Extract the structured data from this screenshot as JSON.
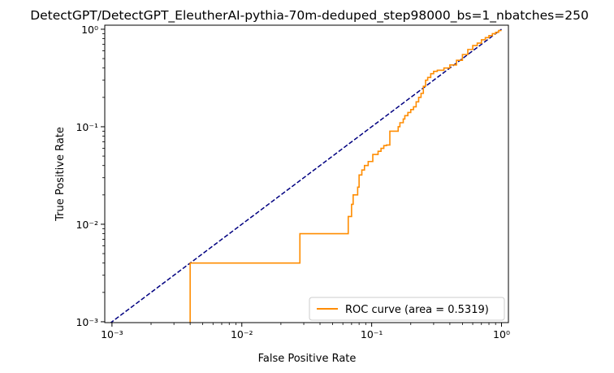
{
  "chart_data": {
    "type": "line",
    "title": "DetectGPT/DetectGPT_EleutherAI-pythia-70m-deduped_step98000_bs=1_nbatches=250",
    "xlabel": "False Positive Rate",
    "ylabel": "True Positive Rate",
    "xscale": "log",
    "yscale": "log",
    "xlim": [
      0.00088,
      1.13
    ],
    "ylim": [
      0.00098,
      1.1
    ],
    "grid": false,
    "legend_position": "lower right",
    "x_tick_labels": [
      "10⁻³",
      "10⁻²",
      "10⁻¹",
      "10⁰"
    ],
    "y_tick_labels": [
      "10⁻³",
      "10⁻²",
      "10⁻¹",
      "10⁰"
    ],
    "series": [
      {
        "name": "ROC curve (area = 0.5319)",
        "color": "#ff8c00",
        "style": "solid",
        "steps": true,
        "x": [
          0.004,
          0.004,
          0.028,
          0.028,
          0.066,
          0.066,
          0.07,
          0.07,
          0.072,
          0.072,
          0.078,
          0.078,
          0.08,
          0.08,
          0.084,
          0.084,
          0.088,
          0.088,
          0.094,
          0.094,
          0.102,
          0.102,
          0.112,
          0.112,
          0.118,
          0.118,
          0.124,
          0.124,
          0.13,
          0.13,
          0.138,
          0.138,
          0.16,
          0.16,
          0.165,
          0.165,
          0.175,
          0.175,
          0.18,
          0.18,
          0.19,
          0.19,
          0.2,
          0.2,
          0.21,
          0.21,
          0.22,
          0.22,
          0.23,
          0.23,
          0.24,
          0.24,
          0.25,
          0.25,
          0.26,
          0.26,
          0.27,
          0.27,
          0.285,
          0.285,
          0.3,
          0.3,
          0.32,
          0.32,
          0.36,
          0.36,
          0.4,
          0.4,
          0.45,
          0.45,
          0.5,
          0.5,
          0.55,
          0.55,
          0.6,
          0.6,
          0.65,
          0.65,
          0.7,
          0.7,
          0.75,
          0.75,
          0.8,
          0.8,
          0.85,
          0.85,
          0.9,
          0.9,
          0.95,
          0.95,
          1.0
        ],
        "y": [
          0.00098,
          0.004,
          0.004,
          0.008,
          0.008,
          0.012,
          0.012,
          0.016,
          0.016,
          0.02,
          0.02,
          0.024,
          0.024,
          0.032,
          0.032,
          0.036,
          0.036,
          0.04,
          0.04,
          0.044,
          0.044,
          0.052,
          0.052,
          0.056,
          0.056,
          0.06,
          0.06,
          0.064,
          0.064,
          0.065,
          0.065,
          0.09,
          0.09,
          0.1,
          0.1,
          0.11,
          0.11,
          0.12,
          0.12,
          0.13,
          0.13,
          0.14,
          0.14,
          0.15,
          0.15,
          0.16,
          0.16,
          0.18,
          0.18,
          0.2,
          0.2,
          0.22,
          0.22,
          0.26,
          0.26,
          0.3,
          0.3,
          0.32,
          0.32,
          0.35,
          0.35,
          0.37,
          0.37,
          0.38,
          0.38,
          0.4,
          0.4,
          0.43,
          0.43,
          0.48,
          0.48,
          0.55,
          0.55,
          0.62,
          0.62,
          0.68,
          0.68,
          0.72,
          0.72,
          0.78,
          0.78,
          0.82,
          0.82,
          0.86,
          0.86,
          0.9,
          0.9,
          0.93,
          0.93,
          0.97,
          0.97
        ]
      },
      {
        "color": "#000080",
        "style": "dashed",
        "x": [
          0.00088,
          1.0
        ],
        "y": [
          0.00088,
          1.0
        ]
      }
    ]
  }
}
